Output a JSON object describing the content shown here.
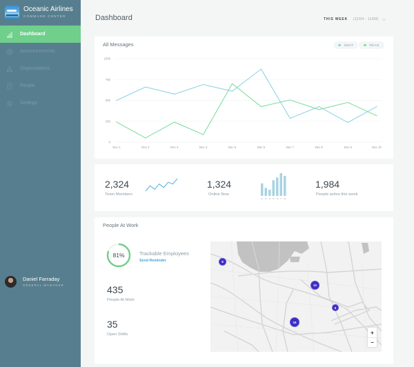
{
  "sidebar": {
    "brand_name": "Oceanic Airlines",
    "brand_sub": "COMMAND CENTER",
    "items": [
      {
        "label": "Dashboard",
        "icon": "bar-chart-icon",
        "active": true
      },
      {
        "label": "Announcements",
        "icon": "broadcast-icon",
        "active": false
      },
      {
        "label": "Organizations",
        "icon": "org-chart-icon",
        "active": false
      },
      {
        "label": "People",
        "icon": "id-card-icon",
        "active": false
      },
      {
        "label": "Settings",
        "icon": "gear-icon",
        "active": false
      }
    ],
    "user": {
      "name": "Daniel Farraday",
      "role": "GENERAL MANAGER"
    }
  },
  "header": {
    "title": "Dashboard",
    "range_label": "THIS WEEK",
    "range_dates": "(11/04 - 11/09)"
  },
  "colors": {
    "sidebar": "#577e8e",
    "active": "#6fcf8b",
    "sent": "#8fd2e6",
    "read": "#7fdea0",
    "bars": "#a9d3e3",
    "marker": "#3d2fc0",
    "link": "#3ea4d6"
  },
  "chart_data": {
    "type": "line",
    "title": "All Messages",
    "categories": [
      "Dec 1",
      "Dec 2",
      "Dec 3",
      "Dec 4",
      "Dec 5",
      "Dec 6",
      "Dec 7",
      "Dec 8",
      "Dec 9",
      "Dec 10"
    ],
    "ylim": [
      0,
      1000
    ],
    "yticks": [
      "1000",
      "750",
      "500",
      "250",
      "0"
    ],
    "ytick_values": [
      1000,
      750,
      500,
      250,
      0
    ],
    "grid": true,
    "legend_position": "top-right",
    "series": [
      {
        "name": "SENT",
        "values": [
          500,
          660,
          575,
          690,
          610,
          875,
          285,
          425,
          235,
          425
        ]
      },
      {
        "name": "READ",
        "values": [
          240,
          50,
          240,
          90,
          700,
          425,
          505,
          390,
          475,
          315
        ]
      }
    ]
  },
  "stats": {
    "team_members": {
      "value": "2,324",
      "label": "Team Members",
      "trend": [
        2,
        5,
        3,
        6,
        4,
        7,
        6,
        9
      ]
    },
    "online_now": {
      "value": "1,324",
      "label": "Online Now",
      "days": [
        "Su",
        "M",
        "Tu",
        "W",
        "Th",
        "F",
        "Sa"
      ],
      "bar_values": [
        55,
        35,
        27,
        69,
        81,
        100,
        88
      ]
    },
    "active_week": {
      "value": "1,984",
      "label": "People active this week"
    }
  },
  "people": {
    "title": "People At Work",
    "trackable_percent": 81,
    "trackable_text": "81%",
    "trackable_label": "Trackable Employees",
    "reminder_label": "Send Reminder",
    "at_work": {
      "value": "435",
      "label": "People At Work"
    },
    "open_shifts": {
      "value": "35",
      "label": "Open Shifts"
    },
    "map_markers": [
      {
        "label": "8"
      },
      {
        "label": "12"
      },
      {
        "label": "6"
      },
      {
        "label": "16"
      }
    ],
    "zoom_in": "+",
    "zoom_out": "−"
  }
}
